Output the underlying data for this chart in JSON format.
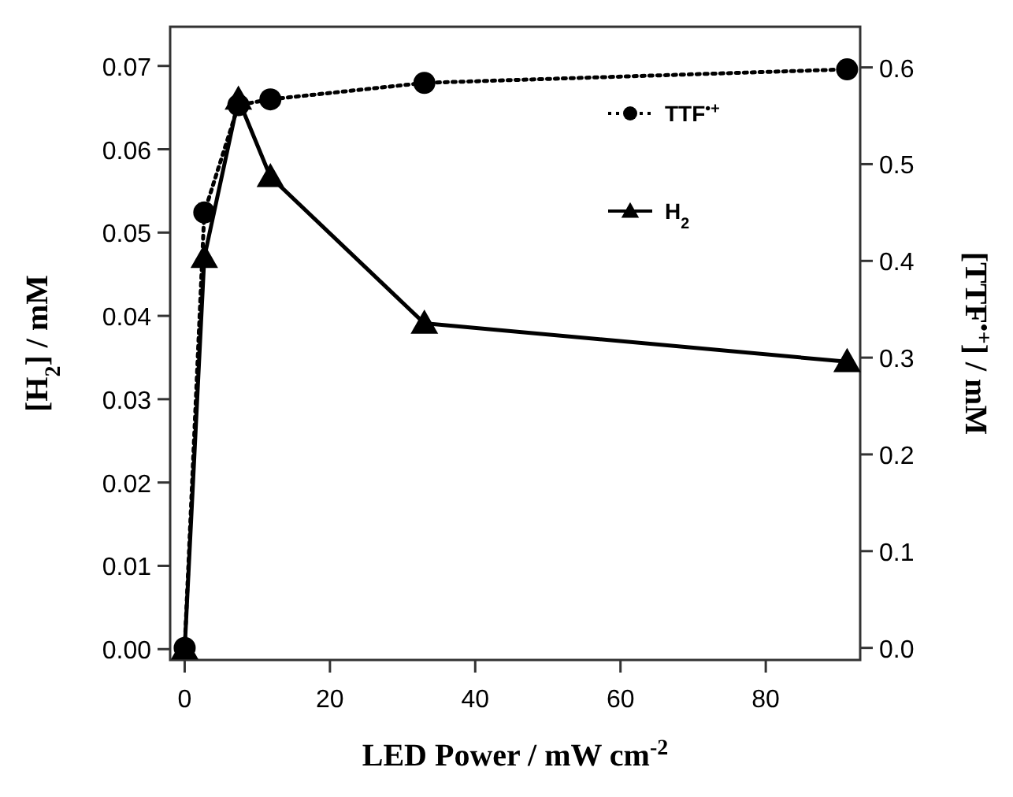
{
  "chart_data": {
    "type": "line",
    "xlabel": "LED Power / mW cm$^{-2}$",
    "ylabel": "[H$_{2}$] / mM",
    "y2label": "[TTF$^{•+}$] / mM",
    "xlim": [
      -2,
      93
    ],
    "xticks": [
      0,
      20,
      40,
      60,
      80
    ],
    "ylim": [
      -0.0013,
      0.0747
    ],
    "yticks": [
      {
        "value": 0,
        "label": "0.00"
      },
      {
        "value": 0.01,
        "label": "0.01"
      },
      {
        "value": 0.02,
        "label": "0.02"
      },
      {
        "value": 0.03,
        "label": "0.03"
      },
      {
        "value": 0.04,
        "label": "0.04"
      },
      {
        "value": 0.05,
        "label": "0.05"
      },
      {
        "value": 0.06,
        "label": "0.06"
      },
      {
        "value": 0.07,
        "label": "0.07"
      }
    ],
    "y2lim": [
      -0.0125,
      0.642
    ],
    "y2ticks": [
      {
        "value": 0,
        "label": "0.0"
      },
      {
        "value": 0.1,
        "label": "0.1"
      },
      {
        "value": 0.2,
        "label": "0.2"
      },
      {
        "value": 0.3,
        "label": "0.3"
      },
      {
        "value": 0.4,
        "label": "0.4"
      },
      {
        "value": 0.5,
        "label": "0.5"
      },
      {
        "value": 0.6,
        "label": "0.6"
      }
    ],
    "legend": "top right",
    "grid": false,
    "series": [
      {
        "name": "TTF$^{•+}$",
        "color": "#000000",
        "axis": "y2",
        "marker": "circle",
        "line_style": "dotted",
        "x": [
          0,
          2.7,
          7.4,
          11.8,
          33,
          91.2
        ],
        "values": [
          0,
          0.45,
          0.561,
          0.567,
          0.584,
          0.598
        ]
      },
      {
        "name": "H$_{2}$",
        "color": "#000000",
        "axis": "y",
        "marker": "triangle",
        "line_style": "solid",
        "x": [
          0,
          2.7,
          7.4,
          11.8,
          33,
          91.2
        ],
        "values": [
          0,
          0.047,
          0.066,
          0.0567,
          0.0391,
          0.0345
        ]
      }
    ]
  }
}
